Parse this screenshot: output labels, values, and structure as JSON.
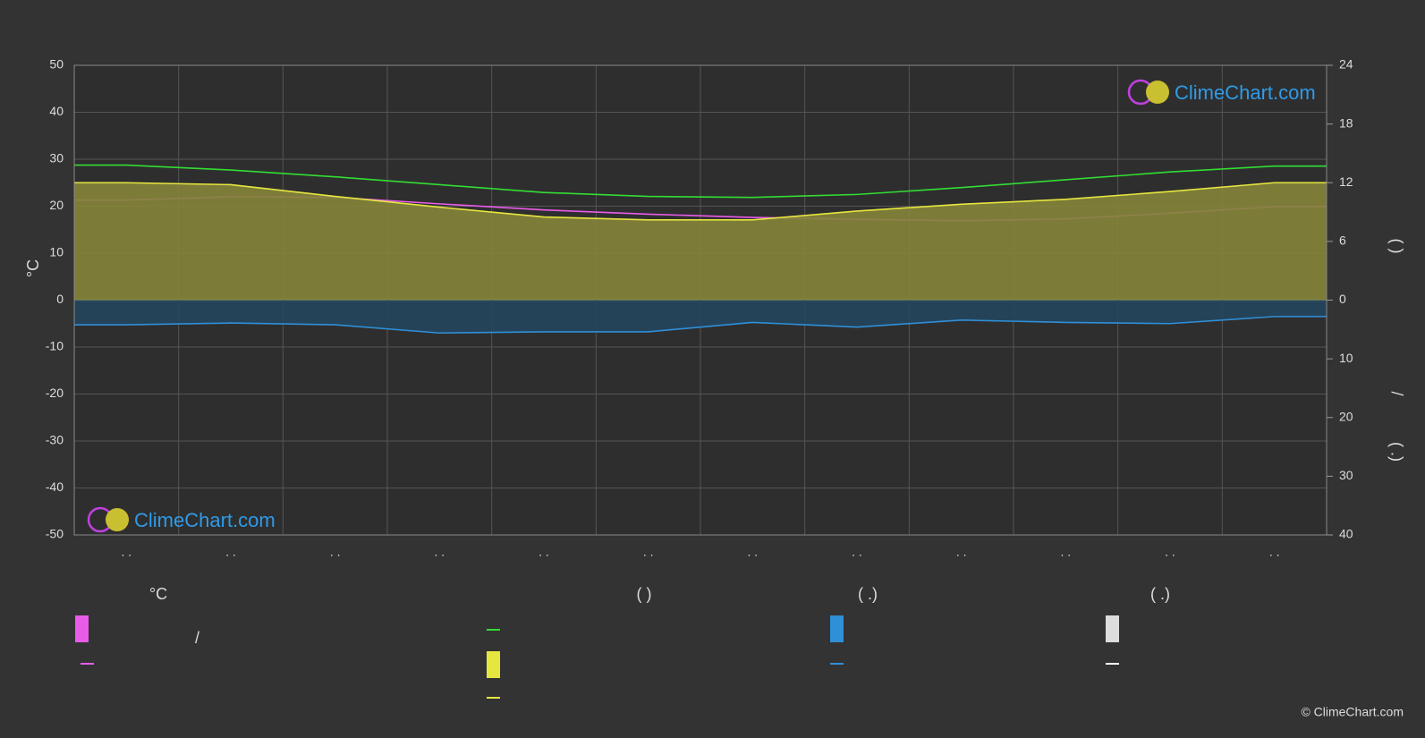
{
  "chart_data": {
    "type": "line",
    "ylabel": "°C",
    "y2label": "(        )",
    "y3label": "(   .)",
    "y3sep": "/",
    "categories": [
      ". .",
      ". .",
      ". .",
      ". .",
      ". .",
      ". .",
      ". .",
      ". .",
      ". .",
      ". .",
      ". .",
      ". ."
    ],
    "ylim": [
      -50,
      50
    ],
    "yticks": [
      -50,
      -40,
      -30,
      -20,
      -10,
      0,
      10,
      20,
      30,
      40,
      50
    ],
    "y2lim": [
      0,
      24
    ],
    "y2ticks": [
      0,
      6,
      12,
      18,
      24
    ],
    "y3lim": [
      0,
      40
    ],
    "y3ticks": [
      10,
      20,
      30,
      40
    ],
    "grid": true,
    "series": [
      {
        "color": "#e85ce8",
        "axis": "y",
        "values": [
          21.3,
          22,
          21.9,
          20.5,
          19.2,
          18.3,
          17.6,
          17.2,
          16.9,
          17.3,
          18.5,
          19.9
        ]
      },
      {
        "color": "#33dd33",
        "axis": "y2",
        "values": [
          13.8,
          13.3,
          12.6,
          11.8,
          11.0,
          10.6,
          10.5,
          10.8,
          11.5,
          12.3,
          13.1,
          13.7
        ]
      },
      {
        "color": "#e6e640",
        "axis": "y2",
        "fill": "#85853a",
        "values": [
          12.0,
          11.8,
          10.6,
          9.5,
          8.5,
          8.2,
          8.2,
          9.1,
          9.8,
          10.3,
          11.1,
          12.0
        ]
      },
      {
        "color": "#2f8fd8",
        "axis": "y3",
        "fill": "#24465e",
        "values": [
          4.2,
          3.9,
          4.2,
          5.6,
          5.4,
          5.4,
          3.8,
          4.6,
          3.4,
          3.8,
          4.0,
          2.8
        ]
      }
    ],
    "legend": {
      "headers": [
        "°C",
        "(          )",
        "(   .)",
        "(   .)"
      ],
      "sep": "/"
    },
    "logo": "ClimeChart.com",
    "copyright": "© ClimeChart.com"
  }
}
